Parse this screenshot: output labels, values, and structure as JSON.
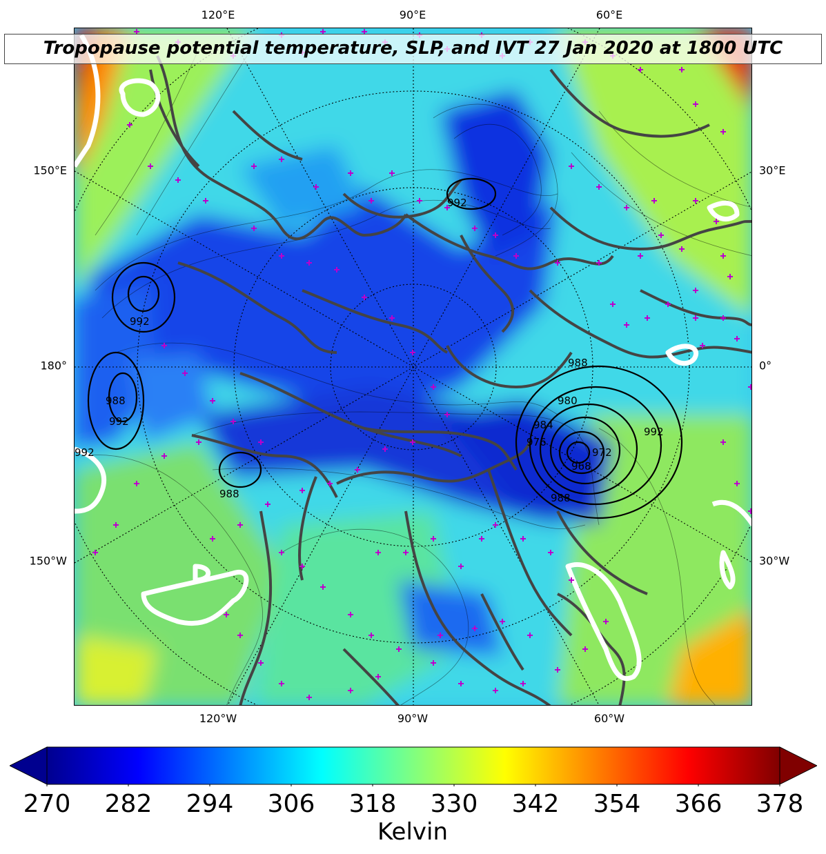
{
  "title": "Tropopause potential temperature, SLP, and IVT 27 Jan 2020 at 1800 UTC",
  "longitude_labels_top": [
    "120°E",
    "90°E",
    "60°E"
  ],
  "longitude_labels_bottom": [
    "120°W",
    "90°W",
    "60°W"
  ],
  "latitude_labels_left": [
    "150°E",
    "180°",
    "150°W"
  ],
  "latitude_labels_right": [
    "30°E",
    "0°",
    "30°W"
  ],
  "slp_contour_labels": [
    "992",
    "992",
    "988",
    "992",
    "992",
    "988",
    "980",
    "984",
    "976",
    "968",
    "972",
    "992",
    "988",
    "988"
  ],
  "colorbar": {
    "unit": "Kelvin",
    "ticks": [
      "270",
      "282",
      "294",
      "306",
      "318",
      "330",
      "342",
      "354",
      "366",
      "378"
    ],
    "min": 270,
    "max": 378,
    "colormap": [
      "#00008f",
      "#0000ff",
      "#0080ff",
      "#00ffff",
      "#80ff80",
      "#ffff00",
      "#ff8000",
      "#ff0000",
      "#800000"
    ]
  },
  "colors": {
    "coastline": "#444444",
    "ivt_contour": "#ffffff",
    "slp_contour": "#000000",
    "station_marker": "#bb00cc"
  }
}
